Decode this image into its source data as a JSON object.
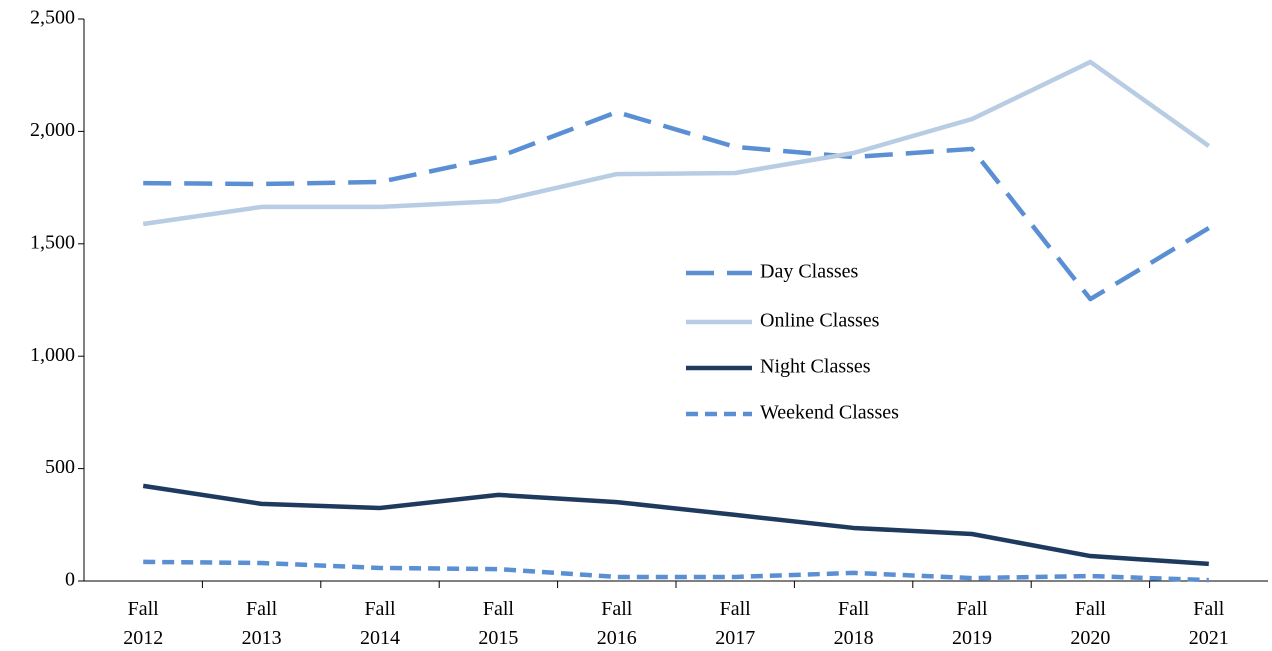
{
  "chart_data": {
    "type": "line",
    "categories": [
      "Fall 2012",
      "Fall 2013",
      "Fall 2014",
      "Fall 2015",
      "Fall 2016",
      "Fall 2017",
      "Fall 2018",
      "Fall 2019",
      "Fall 2020",
      "Fall 2021"
    ],
    "series": [
      {
        "name": "Day Classes",
        "color": "#5b8fd4",
        "dash": "long",
        "values": [
          1770,
          1766,
          1775,
          1886,
          2086,
          1931,
          1886,
          1922,
          1254,
          1570
        ]
      },
      {
        "name": "Online Classes",
        "color": "#b8cce4",
        "dash": "solid",
        "values": [
          1588,
          1664,
          1664,
          1690,
          1810,
          1815,
          1904,
          2055,
          2309,
          1935
        ]
      },
      {
        "name": "Night Classes",
        "color": "#1f3a5f",
        "dash": "solid",
        "values": [
          423,
          343,
          325,
          383,
          351,
          294,
          236,
          209,
          111,
          76
        ]
      },
      {
        "name": "Weekend Classes",
        "color": "#5b8fd4",
        "dash": "short",
        "values": [
          85,
          80,
          58,
          53,
          18,
          18,
          36,
          13,
          22,
          4
        ]
      }
    ],
    "ylim": [
      0,
      2500
    ],
    "yticks": [
      0,
      500,
      {
        "value": 1000,
        "label": "1,000"
      },
      {
        "value": 1500,
        "label": "1,500"
      },
      {
        "value": 2000,
        "label": "2,000"
      },
      {
        "value": 2500,
        "label": "2,500"
      }
    ],
    "grid": false,
    "legend": "center"
  }
}
